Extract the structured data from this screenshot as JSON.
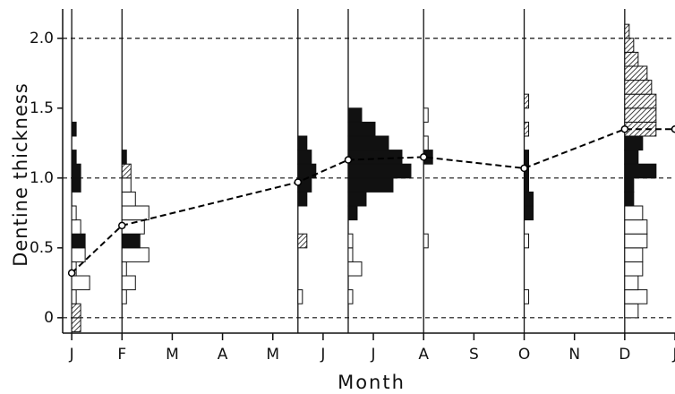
{
  "chart_data": {
    "type": "histogram-line",
    "x_label": "Month",
    "y_label": "Dentine thickness",
    "xlim": [
      -0.18,
      12
    ],
    "ylim": [
      -0.11,
      2.21
    ],
    "xticks": [
      {
        "value": 0,
        "label": "J"
      },
      {
        "value": 1,
        "label": "F"
      },
      {
        "value": 2,
        "label": "M"
      },
      {
        "value": 3,
        "label": "A"
      },
      {
        "value": 4,
        "label": "M"
      },
      {
        "value": 5,
        "label": "J"
      },
      {
        "value": 6,
        "label": "J"
      },
      {
        "value": 7,
        "label": "A"
      },
      {
        "value": 8,
        "label": "S"
      },
      {
        "value": 9,
        "label": "O"
      },
      {
        "value": 10,
        "label": "N"
      },
      {
        "value": 11,
        "label": "D"
      },
      {
        "value": 12,
        "label": "J"
      }
    ],
    "yticks": [
      0,
      0.5,
      {
        "value": 1,
        "label": "1.0"
      },
      1.5,
      {
        "value": 2,
        "label": "2.0"
      }
    ],
    "reference_lines": [
      0,
      1,
      2
    ],
    "series": [
      {
        "color": "#000000",
        "x": [
          0,
          1,
          4.5,
          5.5,
          7,
          9,
          11,
          12
        ],
        "values": [
          0.32,
          0.66,
          0.97,
          1.13,
          1.15,
          1.07,
          1.35,
          1.35
        ]
      }
    ],
    "histograms": [
      {
        "x": 0,
        "bins": [
          -0.1,
          0,
          0.1,
          0.2,
          0.3,
          0.4,
          0.5,
          0.6,
          0.7,
          0.8,
          0.9,
          1.0,
          1.1,
          1.2,
          1.3,
          1.4
        ],
        "counts": [
          2,
          2,
          1,
          4,
          1,
          3,
          3,
          2,
          1,
          0,
          2,
          2,
          1,
          0,
          1
        ],
        "styles": [
          "hatched",
          "hatched",
          "white",
          "white",
          "white",
          "white",
          "black",
          "white",
          "white",
          "white",
          "black",
          "black",
          "black",
          "white",
          "black"
        ]
      },
      {
        "x": 1,
        "bins": [
          0.1,
          0.2,
          0.3,
          0.4,
          0.5,
          0.6,
          0.7,
          0.8,
          0.9,
          1.0,
          1.1,
          1.2
        ],
        "counts": [
          1,
          3,
          1,
          6,
          4,
          5,
          6,
          3,
          2,
          2,
          1
        ],
        "styles": [
          "white",
          "white",
          "white",
          "white",
          "black",
          "white",
          "white",
          "white",
          "white",
          "hatched",
          "black"
        ]
      },
      {
        "x": 4.5,
        "bins": [
          0.1,
          0.2,
          0.3,
          0.4,
          0.5,
          0.6,
          0.7,
          0.8,
          0.9,
          1.0,
          1.1,
          1.2,
          1.3
        ],
        "counts": [
          1,
          0,
          0,
          0,
          2,
          0,
          0,
          2,
          3,
          4,
          3,
          2
        ],
        "styles": [
          "white",
          "white",
          "white",
          "white",
          "hatched",
          "white",
          "white",
          "black",
          "black",
          "black",
          "black",
          "black"
        ]
      },
      {
        "x": 5.5,
        "bins": [
          0.1,
          0.2,
          0.3,
          0.4,
          0.5,
          0.6,
          0.7,
          0.8,
          0.9,
          1.0,
          1.1,
          1.2,
          1.3,
          1.4,
          1.5
        ],
        "counts": [
          1,
          0,
          3,
          1,
          1,
          0,
          2,
          4,
          10,
          14,
          12,
          9,
          6,
          3
        ],
        "styles": [
          "white",
          "white",
          "white",
          "white",
          "white",
          "white",
          "black",
          "black",
          "black",
          "black",
          "black",
          "black",
          "black",
          "black"
        ]
      },
      {
        "x": 7,
        "bins": [
          0.5,
          0.6,
          0.7,
          0.8,
          0.9,
          1.0,
          1.1,
          1.2,
          1.3,
          1.4,
          1.5
        ],
        "counts": [
          1,
          0,
          0,
          0,
          0,
          0,
          2,
          1,
          0,
          1
        ],
        "styles": [
          "white",
          "white",
          "white",
          "white",
          "white",
          "white",
          "black",
          "white",
          "white",
          "white"
        ]
      },
      {
        "x": 9,
        "bins": [
          0.1,
          0.2,
          0.3,
          0.4,
          0.5,
          0.6,
          0.7,
          0.8,
          0.9,
          1.0,
          1.1,
          1.2,
          1.3,
          1.4,
          1.5,
          1.6
        ],
        "counts": [
          1,
          0,
          0,
          0,
          1,
          0,
          2,
          2,
          1,
          1,
          1,
          0,
          1,
          0,
          1
        ],
        "styles": [
          "white",
          "white",
          "white",
          "white",
          "white",
          "white",
          "black",
          "black",
          "black",
          "black",
          "black",
          "white",
          "hatched",
          "white",
          "hatched"
        ]
      },
      {
        "x": 11,
        "bins": [
          0,
          0.1,
          0.2,
          0.3,
          0.4,
          0.5,
          0.6,
          0.7,
          0.8,
          0.9,
          1.0,
          1.1,
          1.2,
          1.3,
          1.4,
          1.5,
          1.6,
          1.7,
          1.8,
          1.9,
          2.0,
          2.1
        ],
        "counts": [
          3,
          5,
          3,
          4,
          4,
          5,
          5,
          4,
          2,
          2,
          7,
          3,
          4,
          7,
          7,
          7,
          6,
          5,
          3,
          2,
          1
        ],
        "styles": [
          "white",
          "white",
          "white",
          "white",
          "white",
          "white",
          "white",
          "white",
          "black",
          "black",
          "black",
          "black",
          "black",
          "hatched",
          "hatched",
          "hatched",
          "hatched",
          "hatched",
          "hatched",
          "hatched",
          "hatched"
        ]
      }
    ]
  }
}
